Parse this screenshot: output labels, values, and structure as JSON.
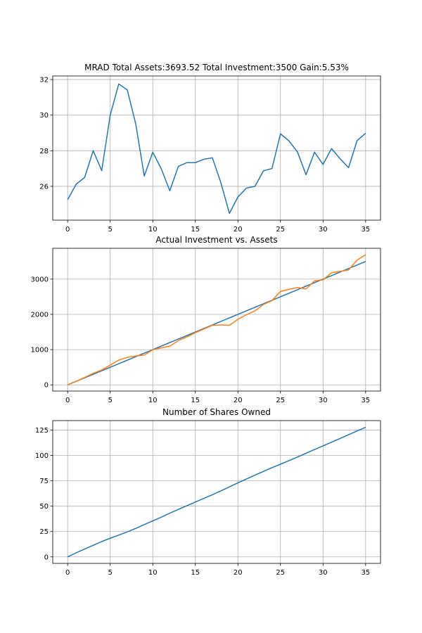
{
  "chart_data": [
    {
      "type": "line",
      "title": "MRAD Total Assets:3693.52  Total Investment:3500  Gain:5.53%",
      "xlabel": "",
      "ylabel": "",
      "xlim": [
        -1.75,
        36.75
      ],
      "ylim": [
        24.1,
        32.2
      ],
      "grid": true,
      "x_ticks": [
        0,
        5,
        10,
        15,
        20,
        25,
        30,
        35
      ],
      "y_ticks": [
        26,
        28,
        30,
        32
      ],
      "series": [
        {
          "color": "#1f77b4",
          "x": [
            0,
            1,
            2,
            3,
            4,
            5,
            6,
            7,
            8,
            9,
            10,
            11,
            12,
            13,
            14,
            15,
            16,
            17,
            18,
            19,
            20,
            21,
            22,
            23,
            24,
            25,
            26,
            27,
            28,
            29,
            30,
            31,
            32,
            33,
            34,
            35
          ],
          "values": [
            25.25,
            26.12,
            26.5,
            28.0,
            26.88,
            30.0,
            31.75,
            31.42,
            29.5,
            26.58,
            27.92,
            26.98,
            25.75,
            27.12,
            27.33,
            27.33,
            27.52,
            27.6,
            26.2,
            24.48,
            25.4,
            25.9,
            26.0,
            26.87,
            27.0,
            28.95,
            28.55,
            27.93,
            26.65,
            27.92,
            27.23,
            28.12,
            27.55,
            27.05,
            28.57,
            28.98
          ]
        }
      ]
    },
    {
      "type": "line",
      "title": "Actual Investment vs. Assets",
      "xlabel": "",
      "ylabel": "",
      "xlim": [
        -1.75,
        36.75
      ],
      "ylim": [
        -175,
        3875
      ],
      "grid": true,
      "x_ticks": [
        0,
        5,
        10,
        15,
        20,
        25,
        30,
        35
      ],
      "y_ticks": [
        0,
        1000,
        2000,
        3000
      ],
      "series": [
        {
          "color": "#1f77b4",
          "x": [
            0,
            35
          ],
          "values": [
            0,
            3500
          ]
        },
        {
          "color": "#ff7f0e",
          "x": [
            0,
            1,
            2,
            3,
            4,
            5,
            6,
            7,
            8,
            9,
            10,
            11,
            12,
            13,
            14,
            15,
            16,
            17,
            18,
            19,
            20,
            21,
            22,
            23,
            24,
            25,
            26,
            27,
            28,
            29,
            30,
            31,
            32,
            33,
            34,
            35
          ],
          "values": [
            0,
            104,
            211,
            328,
            423,
            561,
            702,
            781,
            821,
            845,
            998,
            1050,
            1100,
            1255,
            1360,
            1480,
            1585,
            1690,
            1700,
            1690,
            1860,
            1990,
            2100,
            2280,
            2390,
            2650,
            2710,
            2760,
            2720,
            2950,
            2980,
            3180,
            3220,
            3260,
            3540,
            3693
          ]
        }
      ]
    },
    {
      "type": "line",
      "title": "Number of Shares Owned",
      "xlabel": "",
      "ylabel": "",
      "xlim": [
        -1.75,
        36.75
      ],
      "ylim": [
        -6.4,
        134.4
      ],
      "grid": true,
      "x_ticks": [
        0,
        5,
        10,
        15,
        20,
        25,
        30,
        35
      ],
      "y_ticks": [
        0,
        25,
        50,
        75,
        100,
        125
      ],
      "series": [
        {
          "color": "#1f77b4",
          "x": [
            0,
            1,
            2,
            3,
            4,
            5,
            6,
            7,
            8,
            9,
            10,
            11,
            12,
            13,
            14,
            15,
            16,
            17,
            18,
            19,
            20,
            21,
            22,
            23,
            24,
            25,
            26,
            27,
            28,
            29,
            30,
            31,
            32,
            33,
            34,
            35
          ],
          "values": [
            0,
            4.0,
            7.8,
            11.4,
            15.1,
            18.4,
            21.5,
            24.7,
            28.1,
            31.9,
            35.5,
            39.2,
            43.1,
            46.8,
            50.4,
            54.1,
            57.7,
            61.3,
            65.1,
            69.1,
            73.0,
            76.8,
            80.6,
            84.3,
            88.0,
            91.4,
            94.9,
            98.5,
            102.2,
            105.8,
            109.5,
            113.1,
            116.8,
            120.5,
            124.2,
            127.8
          ]
        }
      ]
    }
  ]
}
